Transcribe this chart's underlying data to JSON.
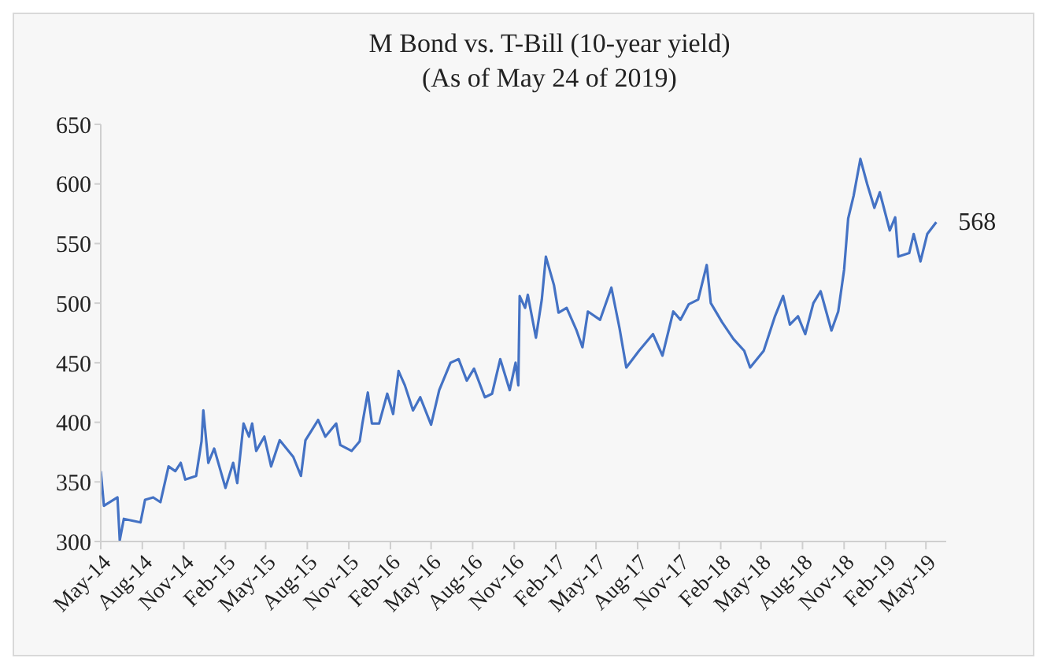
{
  "chart_data": {
    "type": "line",
    "title": "M Bond vs. T-Bill (10-year yield)",
    "subtitle": "(As of May 24 of 2019)",
    "x": [
      "2014-05-01",
      "2014-05-08",
      "2014-06-07",
      "2014-06-12",
      "2014-06-21",
      "2014-07-28",
      "2014-08-07",
      "2014-08-25",
      "2014-09-10",
      "2014-09-28",
      "2014-10-13",
      "2014-10-25",
      "2014-11-04",
      "2014-11-28",
      "2014-12-10",
      "2014-12-14",
      "2014-12-25",
      "2015-01-07",
      "2015-02-01",
      "2015-02-18",
      "2015-02-27",
      "2015-03-13",
      "2015-03-25",
      "2015-04-01",
      "2015-04-10",
      "2015-04-28",
      "2015-05-13",
      "2015-06-01",
      "2015-07-01",
      "2015-07-18",
      "2015-07-28",
      "2015-08-25",
      "2015-09-10",
      "2015-10-04",
      "2015-10-13",
      "2015-11-07",
      "2015-11-25",
      "2015-12-01",
      "2015-12-13",
      "2015-12-22",
      "2016-01-07",
      "2016-01-25",
      "2016-02-07",
      "2016-02-19",
      "2016-03-04",
      "2016-03-22",
      "2016-04-07",
      "2016-05-01",
      "2016-05-19",
      "2016-06-13",
      "2016-07-01",
      "2016-07-19",
      "2016-08-04",
      "2016-08-28",
      "2016-09-13",
      "2016-10-01",
      "2016-10-22",
      "2016-11-04",
      "2016-11-10",
      "2016-11-13",
      "2016-11-25",
      "2016-12-01",
      "2016-12-19",
      "2017-01-01",
      "2017-01-10",
      "2017-01-28",
      "2017-02-07",
      "2017-02-25",
      "2017-03-19",
      "2017-04-01",
      "2017-04-13",
      "2017-05-10",
      "2017-06-04",
      "2017-06-22",
      "2017-07-07",
      "2017-08-04",
      "2017-09-04",
      "2017-09-25",
      "2017-10-19",
      "2017-11-04",
      "2017-11-22",
      "2017-12-13",
      "2018-01-01",
      "2018-01-10",
      "2018-02-04",
      "2018-03-01",
      "2018-03-25",
      "2018-04-07",
      "2018-05-07",
      "2018-06-01",
      "2018-06-19",
      "2018-07-04",
      "2018-07-22",
      "2018-08-07",
      "2018-08-25",
      "2018-09-10",
      "2018-10-04",
      "2018-10-19",
      "2018-11-01",
      "2018-11-10",
      "2018-11-22",
      "2018-12-07",
      "2018-12-22",
      "2019-01-07",
      "2019-01-19",
      "2019-02-10",
      "2019-02-22",
      "2019-03-01",
      "2019-03-25",
      "2019-04-04",
      "2019-04-19",
      "2019-05-04",
      "2019-05-24"
    ],
    "series": [
      {
        "color": "#4472c4",
        "values": [
          359,
          330,
          337,
          301,
          319,
          316,
          335,
          337,
          333,
          363,
          359,
          366,
          352,
          355,
          384,
          410,
          366,
          378,
          345,
          366,
          349,
          399,
          388,
          399,
          376,
          388,
          363,
          385,
          371,
          355,
          385,
          402,
          388,
          399,
          381,
          376,
          384,
          399,
          425,
          399,
          399,
          424,
          407,
          443,
          431,
          410,
          421,
          398,
          427,
          450,
          453,
          435,
          445,
          421,
          424,
          453,
          427,
          450,
          431,
          506,
          496,
          507,
          471,
          503,
          539,
          515,
          492,
          496,
          477,
          463,
          493,
          486,
          513,
          479,
          446,
          460,
          474,
          456,
          493,
          486,
          499,
          503,
          532,
          500,
          484,
          470,
          460,
          446,
          460,
          489,
          506,
          482,
          489,
          474,
          500,
          510,
          477,
          493,
          528,
          571,
          590,
          621,
          600,
          580,
          593,
          561,
          572,
          539,
          542,
          558,
          535,
          558,
          568
        ]
      }
    ],
    "ylim": [
      300,
      650
    ],
    "yticks": [
      300,
      350,
      400,
      450,
      500,
      550,
      600,
      650
    ],
    "xlim": [
      "2014-05-01",
      "2019-06-15"
    ],
    "xticks": [
      {
        "value": "2014-05-01",
        "label": "May-14"
      },
      {
        "value": "2014-08-01",
        "label": "Aug-14"
      },
      {
        "value": "2014-11-01",
        "label": "Nov-14"
      },
      {
        "value": "2015-02-01",
        "label": "Feb-15"
      },
      {
        "value": "2015-05-01",
        "label": "May-15"
      },
      {
        "value": "2015-08-01",
        "label": "Aug-15"
      },
      {
        "value": "2015-11-01",
        "label": "Nov-15"
      },
      {
        "value": "2016-02-01",
        "label": "Feb-16"
      },
      {
        "value": "2016-05-01",
        "label": "May-16"
      },
      {
        "value": "2016-08-01",
        "label": "Aug-16"
      },
      {
        "value": "2016-11-01",
        "label": "Nov-16"
      },
      {
        "value": "2017-02-01",
        "label": "Feb-17"
      },
      {
        "value": "2017-05-01",
        "label": "May-17"
      },
      {
        "value": "2017-08-01",
        "label": "Aug-17"
      },
      {
        "value": "2017-11-01",
        "label": "Nov-17"
      },
      {
        "value": "2018-02-01",
        "label": "Feb-18"
      },
      {
        "value": "2018-05-01",
        "label": "May-18"
      },
      {
        "value": "2018-08-01",
        "label": "Aug-18"
      },
      {
        "value": "2018-11-01",
        "label": "Nov-18"
      },
      {
        "value": "2019-02-01",
        "label": "Feb-19"
      },
      {
        "value": "2019-05-01",
        "label": "May-19"
      }
    ],
    "annotations": [
      {
        "text": "568",
        "x": "2019-05-24",
        "y": 568
      }
    ],
    "grid": false,
    "marker": "none",
    "line_style": "solid"
  }
}
